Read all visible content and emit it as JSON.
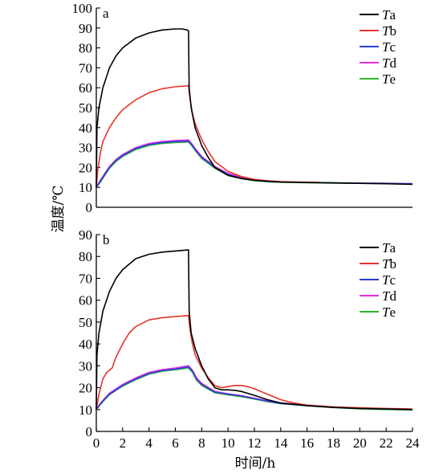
{
  "chart_data": {
    "type": "line",
    "ylabel": "温度/℃",
    "xlabel": "时间/h",
    "xlim": [
      0,
      24
    ],
    "xticks": [
      0,
      2,
      4,
      6,
      8,
      10,
      12,
      14,
      16,
      18,
      20,
      22,
      24
    ],
    "legend_position": "top-right",
    "colors": {
      "Ta": "#000000",
      "Tb": "#e8332a",
      "Tc": "#2b3fd6",
      "Td": "#e62ee6",
      "Te": "#2cb82c"
    },
    "panels": [
      {
        "label": "a",
        "ylim": [
          0,
          100
        ],
        "yticks": [
          0,
          10,
          20,
          30,
          40,
          50,
          60,
          70,
          80,
          90,
          100
        ],
        "x_ticks_shown": false,
        "legend": [
          {
            "sym": "T",
            "sub": "a",
            "color": "#000000"
          },
          {
            "sym": "T",
            "sub": "b",
            "color": "#e8332a"
          },
          {
            "sym": "T",
            "sub": "c",
            "color": "#2b3fd6"
          },
          {
            "sym": "T",
            "sub": "d",
            "color": "#e62ee6"
          },
          {
            "sym": "T",
            "sub": "e",
            "color": "#2cb82c"
          }
        ],
        "series": [
          {
            "name": "Ta",
            "color": "#000000",
            "x": [
              0,
              0.05,
              0.2,
              0.5,
              1,
              1.5,
              2,
              3,
              4,
              5,
              6,
              6.5,
              6.9,
              7,
              7.05,
              7.2,
              7.5,
              8,
              8.5,
              9,
              10,
              11,
              12,
              14,
              16,
              18,
              20,
              22,
              24
            ],
            "y": [
              10,
              40,
              50,
              60,
              70,
              76,
              80,
              85,
              87.5,
              89,
              89.5,
              89.5,
              89,
              88.5,
              60,
              50,
              40,
              31,
              25,
              20,
              16,
              14.5,
              13.5,
              12.7,
              12.4,
              12.2,
              12,
              11.8,
              11.5
            ]
          },
          {
            "name": "Tb",
            "color": "#e8332a",
            "x": [
              0,
              0.1,
              0.3,
              0.5,
              1,
              1.5,
              2,
              3,
              4,
              5,
              6,
              7,
              7.1,
              7.3,
              7.5,
              8,
              8.5,
              9,
              10,
              11,
              12,
              13,
              14,
              15,
              16,
              17
            ],
            "y": [
              10,
              18,
              27,
              33,
              40,
              45,
              49,
              54,
              57.5,
              59.5,
              60.5,
              61,
              55,
              47,
              42,
              34,
              28,
              23,
              18,
              15.5,
              14,
              13.3,
              12.9,
              12.7,
              12.6,
              12.5
            ]
          },
          {
            "name": "Tc",
            "color": "#2b3fd6",
            "x": [
              0,
              0.3,
              0.6,
              1,
              1.5,
              2,
              3,
              4,
              5,
              6,
              7,
              7.3,
              7.5,
              8,
              9,
              10,
              11,
              12,
              13,
              14,
              16,
              18,
              20,
              22,
              24
            ],
            "y": [
              10,
              13,
              16,
              20,
              23.5,
              26,
              29.5,
              31.5,
              32.5,
              33,
              33.2,
              31,
              29,
              25,
              20,
              16.5,
              14.5,
              13.5,
              13,
              12.7,
              12.5,
              12.3,
              12.1,
              12,
              11.8
            ]
          },
          {
            "name": "Td",
            "color": "#e62ee6",
            "x": [
              0,
              0.3,
              0.6,
              1,
              1.5,
              2,
              3,
              4,
              5,
              6,
              7,
              7.3,
              7.5,
              8,
              9,
              10,
              11,
              12,
              13,
              14,
              16,
              18,
              20,
              22,
              24
            ],
            "y": [
              10,
              13.5,
              16.5,
              20.5,
              24,
              26.5,
              30,
              32,
              33,
              33.5,
              33.8,
              31.5,
              29.5,
              25.5,
              20.5,
              17,
              15,
              13.8,
              13.2,
              12.8,
              12.5,
              12.3,
              12.1,
              12,
              11.8
            ]
          },
          {
            "name": "Te",
            "color": "#2cb82c",
            "x": [
              0,
              0.3,
              0.6,
              1,
              1.5,
              2,
              3,
              4,
              5,
              6,
              7,
              7.3,
              7.5,
              8,
              9,
              10,
              11,
              12,
              13,
              14,
              16,
              18,
              20,
              22,
              24
            ],
            "y": [
              10,
              12.5,
              15.5,
              19.5,
              23,
              25.5,
              29,
              31,
              32,
              32.5,
              32.8,
              30.5,
              28.5,
              24.5,
              19.5,
              16,
              14.3,
              13.3,
              12.8,
              12.5,
              12.3,
              12.1,
              12,
              11.9,
              11.7
            ]
          }
        ]
      },
      {
        "label": "b",
        "ylim": [
          0,
          90
        ],
        "yticks": [
          0,
          10,
          20,
          30,
          40,
          50,
          60,
          70,
          80,
          90
        ],
        "x_ticks_shown": true,
        "legend": [
          {
            "sym": "T",
            "sub": "a",
            "color": "#000000"
          },
          {
            "sym": "T",
            "sub": "b",
            "color": "#e8332a"
          },
          {
            "sym": "T",
            "sub": "c",
            "color": "#2b3fd6"
          },
          {
            "sym": "T",
            "sub": "d",
            "color": "#e62ee6"
          },
          {
            "sym": "T",
            "sub": "e",
            "color": "#2cb82c"
          }
        ],
        "series": [
          {
            "name": "Ta",
            "color": "#000000",
            "x": [
              0,
              0.05,
              0.2,
              0.5,
              1,
              1.5,
              2,
              3,
              4,
              5,
              6,
              7,
              7.05,
              7.2,
              7.5,
              8,
              8.5,
              9,
              9.5,
              10,
              10.5,
              11,
              12,
              13,
              14,
              16,
              18,
              20,
              22,
              24
            ],
            "y": [
              10,
              35,
              45,
              55,
              64,
              70,
              74,
              79,
              81,
              82,
              82.5,
              83,
              55,
              45,
              38,
              30,
              24,
              20,
              19,
              19,
              18.8,
              18.3,
              16.5,
              14.5,
              13,
              11.8,
              11,
              10.5,
              10.3,
              10
            ]
          },
          {
            "name": "Tb",
            "color": "#e8332a",
            "x": [
              0,
              0.2,
              0.5,
              0.8,
              1,
              1.2,
              1.5,
              2,
              2.5,
              3,
              4,
              5,
              6,
              7,
              7.1,
              7.3,
              7.5,
              8,
              8.5,
              9,
              9.5,
              10,
              10.5,
              11,
              11.5,
              12,
              13,
              14,
              15,
              16,
              18,
              20,
              22,
              24
            ],
            "y": [
              10,
              17,
              24,
              27,
              28,
              29,
              34,
              40,
              45,
              48,
              51,
              52,
              52.5,
              53,
              47,
              40,
              35,
              29,
              24.5,
              21,
              20,
              20.5,
              21,
              21,
              20.5,
              19.5,
              17,
              14.5,
              13,
              12,
              11.2,
              10.8,
              10.5,
              10.3
            ]
          },
          {
            "name": "Tc",
            "color": "#2b3fd6",
            "x": [
              0,
              0.3,
              0.6,
              1,
              1.5,
              2,
              3,
              4,
              5,
              6,
              7,
              7.3,
              7.6,
              8,
              9,
              10,
              11,
              12,
              13,
              14,
              16,
              18,
              20,
              22,
              24
            ],
            "y": [
              10,
              12.5,
              14.5,
              17,
              19,
              21,
              24,
              26.5,
              27.8,
              28.5,
              29.5,
              27.5,
              24,
              21.5,
              18,
              17,
              16.2,
              15,
              13.8,
              12.8,
              11.8,
              11,
              10.5,
              10.2,
              10
            ]
          },
          {
            "name": "Td",
            "color": "#e62ee6",
            "x": [
              0,
              0.3,
              0.6,
              1,
              1.5,
              2,
              3,
              4,
              5,
              6,
              7,
              7.3,
              7.6,
              8,
              9,
              10,
              11,
              12,
              13,
              14,
              16,
              18,
              20,
              22,
              24
            ],
            "y": [
              10,
              12.8,
              14.8,
              17.5,
              19.5,
              21.5,
              24.5,
              27,
              28.3,
              29,
              30,
              28,
              24.5,
              22,
              18.3,
              17.2,
              16.4,
              15.2,
              14,
              13,
              12,
              11.2,
              10.6,
              10.3,
              10.1
            ]
          },
          {
            "name": "Te",
            "color": "#2cb82c",
            "x": [
              0,
              0.3,
              0.6,
              1,
              1.5,
              2,
              3,
              4,
              5,
              6,
              7,
              7.3,
              7.6,
              8,
              9,
              10,
              11,
              12,
              13,
              14,
              16,
              18,
              20,
              22,
              24
            ],
            "y": [
              10,
              12.2,
              14.2,
              16.8,
              18.8,
              20.7,
              23.7,
              26.2,
              27.5,
              28.2,
              29,
              27,
              23.5,
              21,
              17.6,
              16.7,
              15.9,
              14.8,
              13.6,
              12.7,
              11.7,
              10.9,
              10.3,
              10,
              9.8
            ]
          }
        ]
      }
    ]
  }
}
